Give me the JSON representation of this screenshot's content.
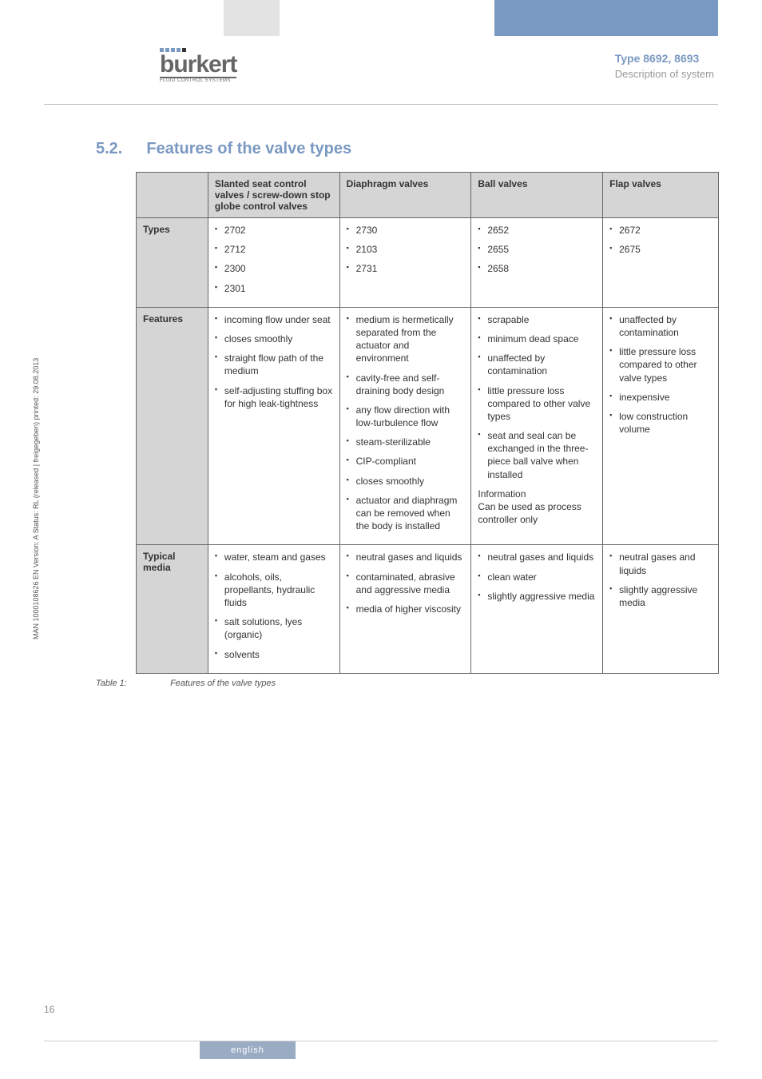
{
  "header": {
    "logo_text": "burkert",
    "logo_sub": "FLUID CONTROL SYSTEMS",
    "type_line": "Type 8692, 8693",
    "desc_line": "Description of system"
  },
  "section": {
    "number": "5.2.",
    "title": "Features of the valve types"
  },
  "table": {
    "headers": [
      "",
      "Slanted seat control valves / screw-down stop globe control valves",
      "Diaphragm valves",
      "Ball valves",
      "Flap valves"
    ],
    "rows": {
      "types": {
        "label": "Types",
        "c1": [
          "2702",
          "2712",
          "2300",
          "2301"
        ],
        "c2": [
          "2730",
          "2103",
          "2731"
        ],
        "c3": [
          "2652",
          "2655",
          "2658"
        ],
        "c4": [
          "2672",
          "2675"
        ]
      },
      "features": {
        "label": "Features",
        "c1": [
          "incoming flow under seat",
          "closes smoothly",
          "straight flow path of the medium",
          "self-adjusting stuffing box for high leak-tightness"
        ],
        "c2": [
          "medium is hermetically separated from the actuator and environment",
          "cavity-free and self-draining body design",
          "any flow direction with low-turbulence flow",
          "steam-sterilizable",
          "CIP-compliant",
          "closes smoothly",
          "actuator and diaphragm can be removed when the body is installed"
        ],
        "c3_bullets": [
          "scrapable",
          "minimum dead space",
          "unaffected by contamination",
          "little pressure loss compared to other valve types",
          "seat and seal can be exchanged in the three-piece ball valve when installed"
        ],
        "c3_info_title": "Information",
        "c3_info_body": "Can be used as process controller only",
        "c4": [
          "unaffected by contamination",
          "little pressure loss compared to other valve types",
          "inexpensive",
          "low construction volume"
        ]
      },
      "media": {
        "label": "Typical media",
        "c1": [
          "water, steam and gases",
          "alcohols, oils, propellants, hydraulic fluids",
          "salt solutions, lyes (organic)",
          "solvents"
        ],
        "c2": [
          "neutral gases and liquids",
          "contaminated, abrasive and aggressive media",
          "media of higher viscosity"
        ],
        "c3": [
          "neutral gases and liquids",
          "clean water",
          "slightly aggressive media"
        ],
        "c4": [
          "neutral gases and liquids",
          "slightly aggressive media"
        ]
      }
    }
  },
  "caption": {
    "label": "Table 1:",
    "text": "Features of the valve types"
  },
  "side_text": "MAN 1000108626 EN Version: A Status: RL (released | freigegeben) printed: 29.08.2013",
  "page_number": "16",
  "footer": "english"
}
